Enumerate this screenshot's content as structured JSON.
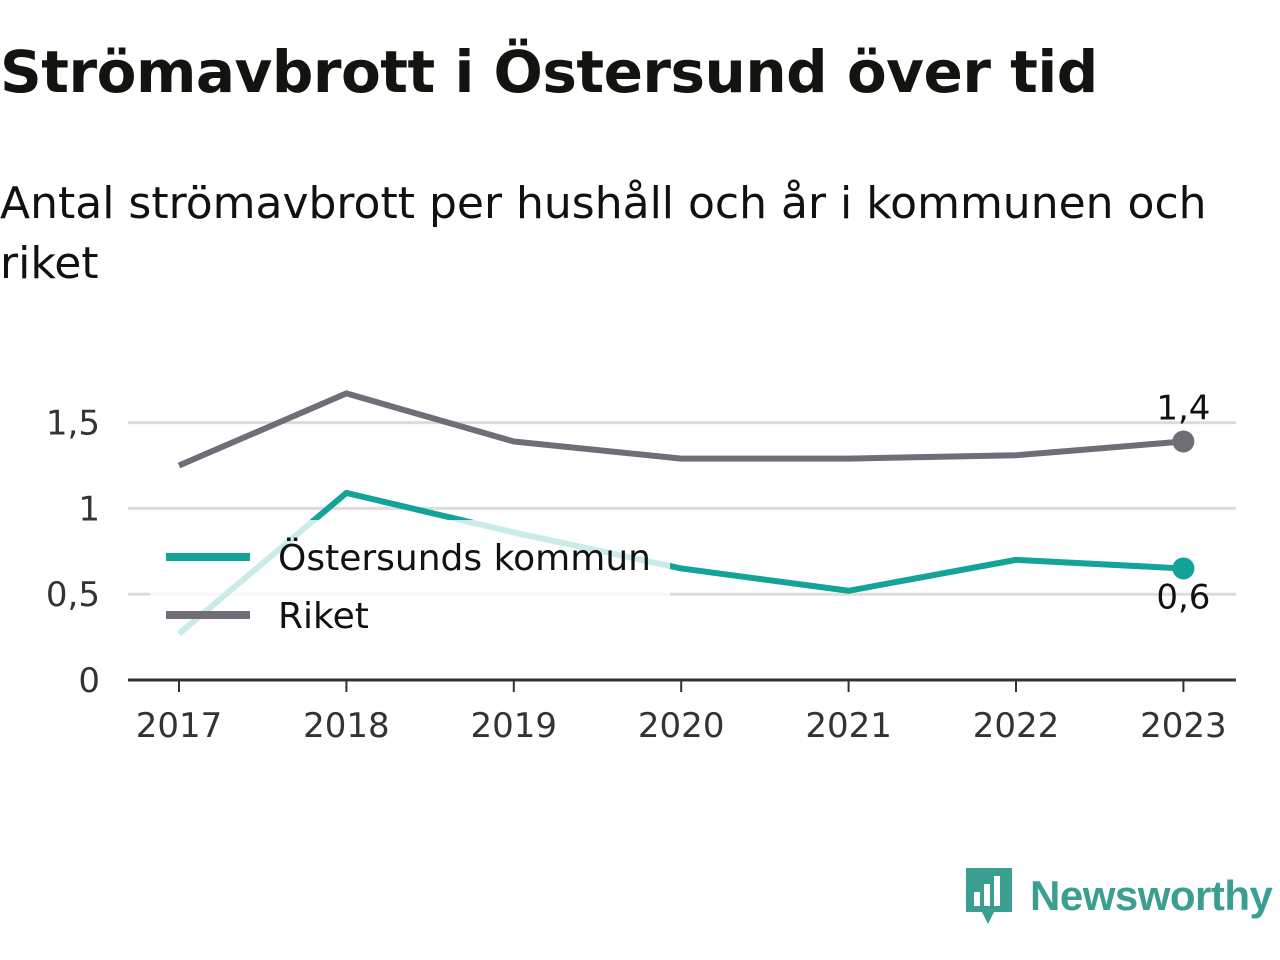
{
  "title": "Strömavbrott i Östersund över tid",
  "subtitle": "Antal strömavbrott per hushåll och år i kommunen och riket",
  "brand": {
    "name": "Newsworthy",
    "color": "#3a9e90",
    "icon": "newsworthy-logo-icon"
  },
  "colors": {
    "kommun": "#13a398",
    "riket": "#6f6e77",
    "grid": "#dcdcdc",
    "axis": "#333333"
  },
  "chart_data": {
    "type": "line",
    "x": [
      "2017",
      "2018",
      "2019",
      "2020",
      "2021",
      "2022",
      "2023"
    ],
    "y_ticks": [
      "0",
      "0,5",
      "1",
      "1,5"
    ],
    "y_tick_values": [
      0,
      0.5,
      1,
      1.5
    ],
    "ylim": [
      0,
      1.5
    ],
    "grid": true,
    "legend_position": "left",
    "series": [
      {
        "name": "Östersunds kommun",
        "values": [
          0.27,
          1.09,
          0.86,
          0.65,
          0.52,
          0.7,
          0.65
        ],
        "end_label": "0,6"
      },
      {
        "name": "Riket",
        "values": [
          1.25,
          1.67,
          1.39,
          1.29,
          1.29,
          1.31,
          1.39
        ],
        "end_label": "1,4"
      }
    ]
  }
}
